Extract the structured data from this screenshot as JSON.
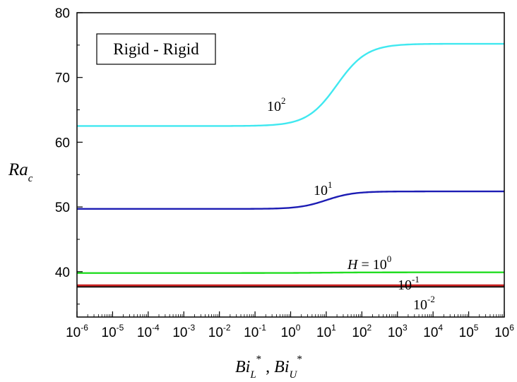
{
  "chart_data": {
    "type": "line",
    "x_scale": "log",
    "xlim": [
      1e-06,
      1000000.0
    ],
    "ylim": [
      33,
      80
    ],
    "y_ticks": [
      40,
      50,
      60,
      70,
      80
    ],
    "x_ticks": [
      {
        "base": "10",
        "exp": "-6"
      },
      {
        "base": "10",
        "exp": "-5"
      },
      {
        "base": "10",
        "exp": "-4"
      },
      {
        "base": "10",
        "exp": "-3"
      },
      {
        "base": "10",
        "exp": "-2"
      },
      {
        "base": "10",
        "exp": "-1"
      },
      {
        "base": "10",
        "exp": "0"
      },
      {
        "base": "10",
        "exp": "1"
      },
      {
        "base": "10",
        "exp": "2"
      },
      {
        "base": "10",
        "exp": "3"
      },
      {
        "base": "10",
        "exp": "4"
      },
      {
        "base": "10",
        "exp": "5"
      },
      {
        "base": "10",
        "exp": "6"
      }
    ],
    "ylabel": {
      "main": "Ra",
      "sub": "c"
    },
    "xlabel": {
      "a": "Bi",
      "a_sub": "L",
      "a_sup": "*",
      "sep": " , ",
      "b": "Bi",
      "b_sub": "U",
      "b_sup": "*"
    },
    "legend_box": "Rigid - Rigid",
    "grid": false,
    "series": [
      {
        "label_base": "10",
        "label_exp": "2",
        "color": "#40e8f0",
        "low": 62.5,
        "high": 75.2,
        "center_log": 1.3,
        "width": 0.42,
        "x": [
          1e-06,
          0.01,
          0.1,
          1.0,
          10.0,
          100.0,
          1000.0,
          1000000.0
        ],
        "y": [
          62.5,
          62.6,
          63.3,
          66.0,
          71.0,
          74.3,
          75.1,
          75.2
        ]
      },
      {
        "label_base": "10",
        "label_exp": "1",
        "color": "#1c1cb4",
        "low": 49.7,
        "high": 52.4,
        "center_log": 1.0,
        "width": 0.38,
        "x": [
          1e-06,
          0.01,
          0.1,
          1.0,
          10.0,
          100.0,
          1000.0,
          1000000.0
        ],
        "y": [
          49.7,
          49.7,
          49.9,
          50.5,
          51.6,
          52.3,
          52.4,
          52.4
        ]
      },
      {
        "label_prefix": "H = ",
        "label_base": "10",
        "label_exp": "0",
        "color": "#22dd22",
        "low": 39.8,
        "high": 39.9,
        "center_log": 1.0,
        "width": 0.5,
        "x": [
          1e-06,
          1.0,
          1000000.0
        ],
        "y": [
          39.8,
          39.85,
          39.9
        ]
      },
      {
        "label_base": "10",
        "label_exp": "-1",
        "color": "#cc2222",
        "low": 37.9,
        "high": 37.9,
        "center_log": 0,
        "width": 1,
        "x": [
          1e-06,
          1000000.0
        ],
        "y": [
          37.9,
          37.9
        ]
      },
      {
        "label_base": "10",
        "label_exp": "-2",
        "color": "#111111",
        "low": 37.7,
        "high": 37.7,
        "center_log": 0,
        "width": 1,
        "x": [
          1e-06,
          1000000.0
        ],
        "y": [
          37.7,
          37.7
        ]
      }
    ]
  }
}
